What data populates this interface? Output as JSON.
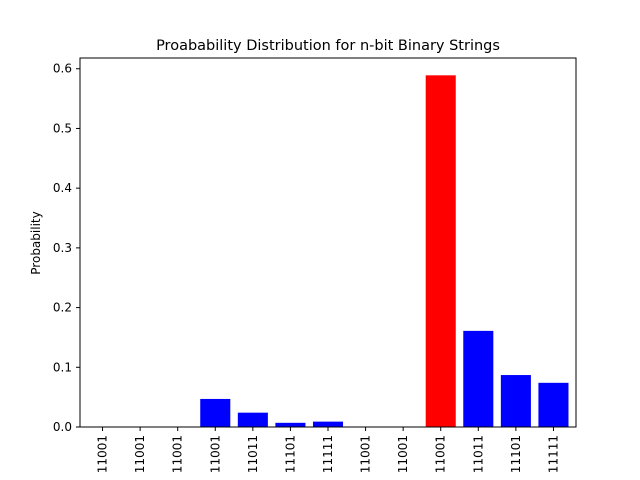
{
  "chart_data": {
    "type": "bar",
    "title": "Proabability Distribution for n-bit Binary Strings",
    "xlabel": "",
    "ylabel": "Probability",
    "ylim": [
      0,
      0.618
    ],
    "yticks": [
      0.0,
      0.1,
      0.2,
      0.3,
      0.4,
      0.5,
      0.6
    ],
    "ytick_labels": [
      "0.0",
      "0.1",
      "0.2",
      "0.3",
      "0.4",
      "0.5",
      "0.6"
    ],
    "grid": false,
    "categories": [
      "11001",
      "11001",
      "11001",
      "11001",
      "11011",
      "11101",
      "11111",
      "11001",
      "11001",
      "11001",
      "11011",
      "11101",
      "11111"
    ],
    "values": [
      0.0,
      0.0,
      0.0,
      0.047,
      0.024,
      0.007,
      0.009,
      0.0,
      0.0,
      0.589,
      0.161,
      0.087,
      0.074
    ],
    "colors": [
      "#0000ff",
      "#0000ff",
      "#0000ff",
      "#0000ff",
      "#0000ff",
      "#0000ff",
      "#0000ff",
      "#0000ff",
      "#0000ff",
      "#ff0000",
      "#0000ff",
      "#0000ff",
      "#0000ff"
    ]
  }
}
